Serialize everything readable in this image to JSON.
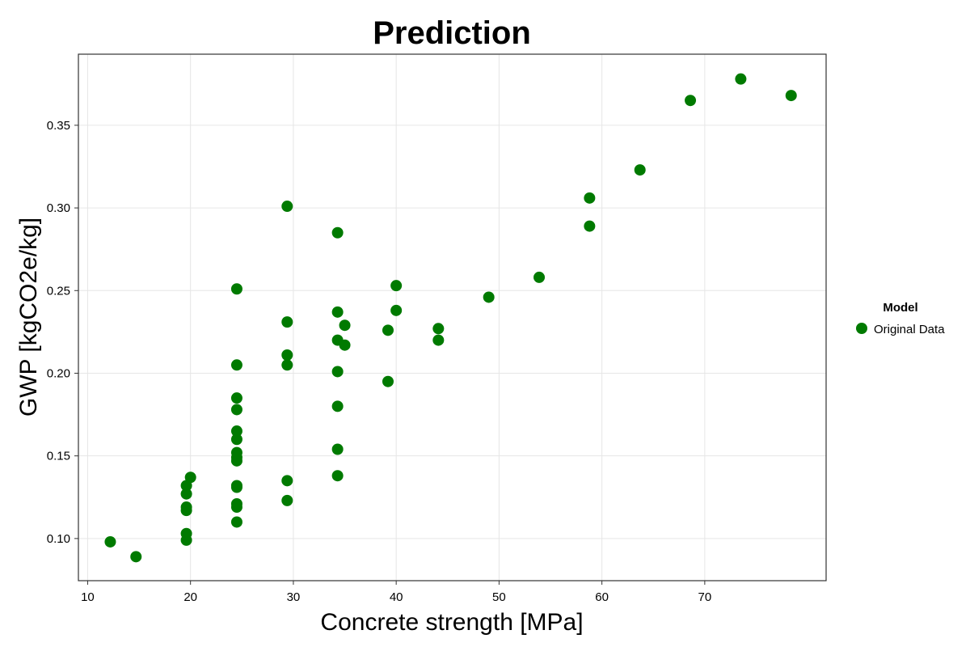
{
  "chart_data": {
    "type": "scatter",
    "title": "Prediction",
    "xlabel": "Concrete strength [MPa]",
    "ylabel": "GWP [kgCO2e/kg]",
    "xlim": [
      9.1,
      81.8
    ],
    "ylim": [
      0.0745,
      0.393
    ],
    "xticks": [
      10,
      20,
      30,
      40,
      50,
      60,
      70
    ],
    "yticks": [
      0.1,
      0.15,
      0.2,
      0.25,
      0.3,
      0.35
    ],
    "grid": true,
    "legend": {
      "title": "Model",
      "position": "right"
    },
    "series": [
      {
        "name": "Original Data",
        "color": "#007a00",
        "points": [
          [
            12.2,
            0.098
          ],
          [
            14.7,
            0.089
          ],
          [
            19.6,
            0.099
          ],
          [
            19.6,
            0.103
          ],
          [
            19.6,
            0.117
          ],
          [
            19.6,
            0.119
          ],
          [
            19.6,
            0.127
          ],
          [
            19.6,
            0.132
          ],
          [
            20.0,
            0.137
          ],
          [
            24.5,
            0.11
          ],
          [
            24.5,
            0.119
          ],
          [
            24.5,
            0.121
          ],
          [
            24.5,
            0.131
          ],
          [
            24.5,
            0.132
          ],
          [
            24.5,
            0.147
          ],
          [
            24.5,
            0.149
          ],
          [
            24.5,
            0.152
          ],
          [
            24.5,
            0.16
          ],
          [
            24.5,
            0.165
          ],
          [
            24.5,
            0.178
          ],
          [
            24.5,
            0.185
          ],
          [
            24.5,
            0.205
          ],
          [
            24.5,
            0.251
          ],
          [
            29.4,
            0.123
          ],
          [
            29.4,
            0.135
          ],
          [
            29.4,
            0.205
          ],
          [
            29.4,
            0.211
          ],
          [
            29.4,
            0.231
          ],
          [
            29.4,
            0.301
          ],
          [
            34.3,
            0.138
          ],
          [
            34.3,
            0.154
          ],
          [
            34.3,
            0.18
          ],
          [
            34.3,
            0.201
          ],
          [
            34.3,
            0.22
          ],
          [
            34.3,
            0.237
          ],
          [
            34.3,
            0.285
          ],
          [
            35.0,
            0.217
          ],
          [
            35.0,
            0.229
          ],
          [
            39.2,
            0.195
          ],
          [
            39.2,
            0.226
          ],
          [
            40.0,
            0.238
          ],
          [
            40.0,
            0.253
          ],
          [
            44.1,
            0.22
          ],
          [
            44.1,
            0.227
          ],
          [
            49.0,
            0.246
          ],
          [
            53.9,
            0.258
          ],
          [
            58.8,
            0.289
          ],
          [
            58.8,
            0.306
          ],
          [
            63.7,
            0.323
          ],
          [
            68.6,
            0.365
          ],
          [
            73.5,
            0.378
          ],
          [
            78.4,
            0.368
          ]
        ]
      }
    ]
  }
}
